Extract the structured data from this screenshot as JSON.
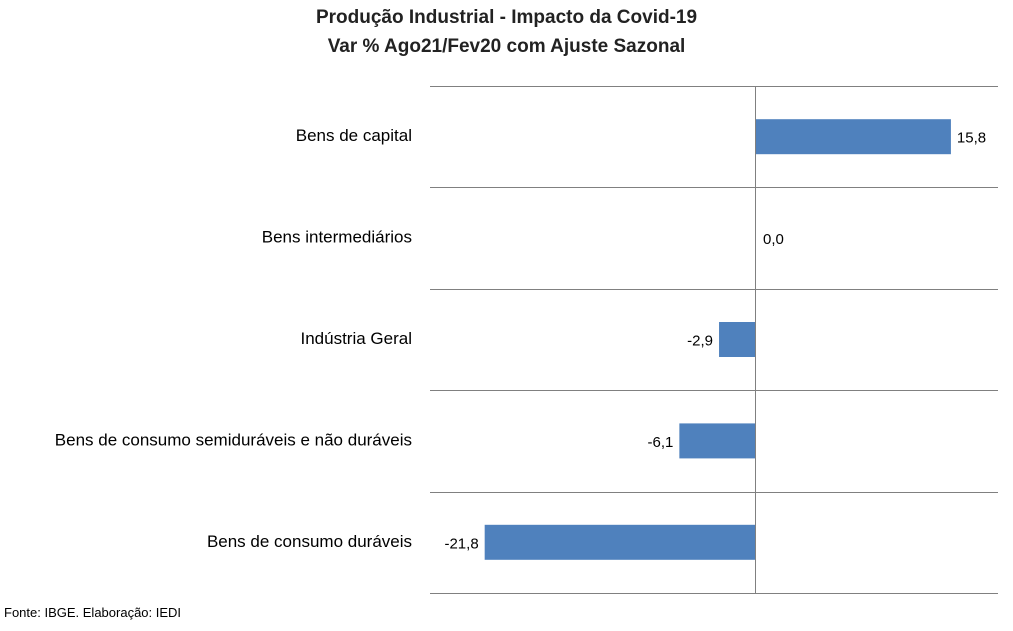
{
  "chart_data": {
    "type": "bar",
    "orientation": "horizontal",
    "title": "Produção Industrial - Impacto da Covid-19",
    "subtitle": "Var % Ago21/Fev20 com Ajuste Sazonal",
    "categories": [
      "Bens de capital",
      "Bens intermediários",
      "Indústria Geral",
      "Bens de consumo semiduráveis e não duráveis",
      "Bens de consumo duráveis"
    ],
    "values": [
      15.8,
      0.0,
      -2.9,
      -6.1,
      -21.8
    ],
    "data_labels": [
      "15,8",
      "0,0",
      "-2,9",
      "-6,1",
      "-21,8"
    ],
    "xlim": [
      -24,
      19
    ],
    "bar_color": "#4F81BD",
    "grid": "horizontal separators between categories",
    "legend": "none"
  },
  "footer": {
    "source": "Fonte: IBGE. Elaboração: IEDI"
  }
}
